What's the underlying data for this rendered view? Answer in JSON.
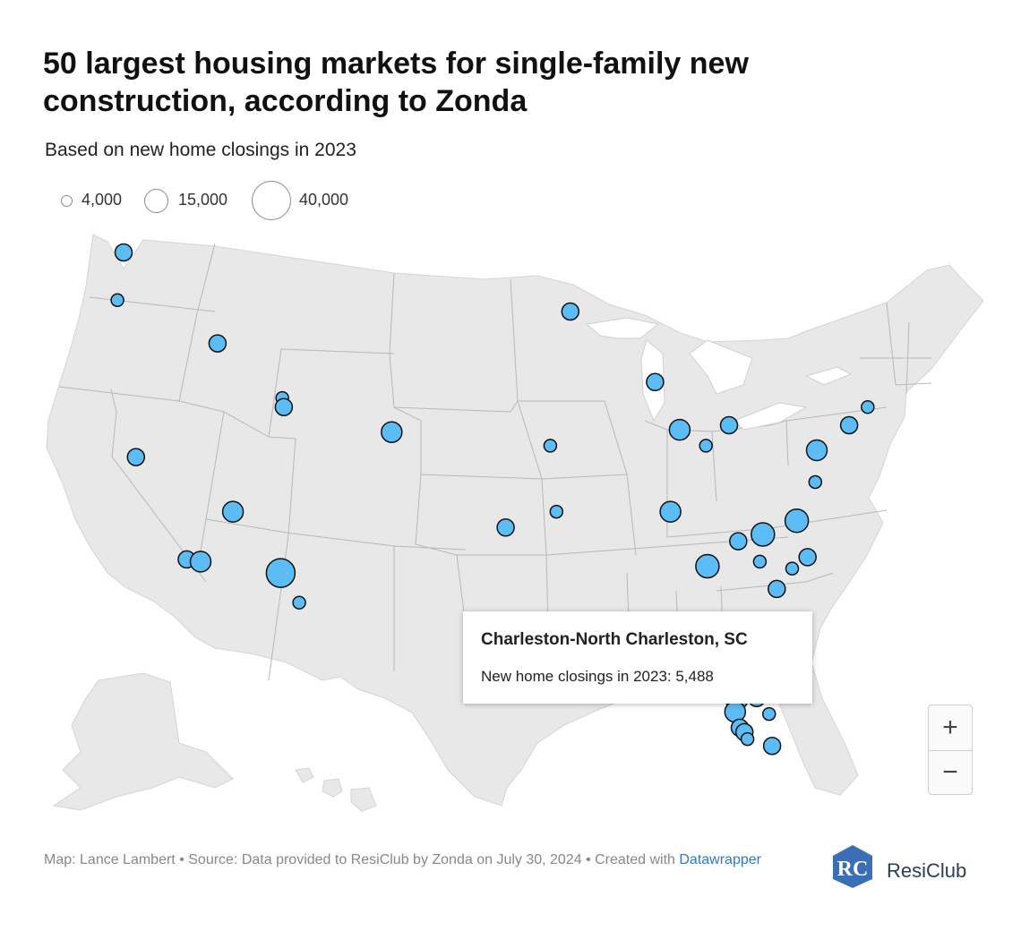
{
  "title": "50 largest housing markets for single-family new construction, according to Zonda",
  "subtitle": "Based on new home closings in 2023",
  "legend": [
    {
      "label": "4,000",
      "value": 4000
    },
    {
      "label": "15,000",
      "value": 15000
    },
    {
      "label": "40,000",
      "value": 40000
    }
  ],
  "tooltip": {
    "title": "Charleston-North Charleston, SC",
    "body_label": "New home closings in 2023: ",
    "body_value": "5,488"
  },
  "zoom": {
    "in_label": "+",
    "out_label": "−"
  },
  "footer": {
    "text": "Map: Lance Lambert • Source: Data provided to ResiClub by Zonda on July 30, 2024 • Created with ",
    "link": "Datawrapper"
  },
  "logo": {
    "mark": "RC",
    "text": "ResiClub"
  },
  "colors": {
    "marker_fill": "#5cbcf5",
    "marker_stroke": "#111111",
    "land": "#e8e8e8",
    "border": "#b8b8b8"
  },
  "markers": [
    {
      "lon": -122.3,
      "lat": 47.6,
      "size": "s"
    },
    {
      "lon": -122.7,
      "lat": 45.5,
      "size": "xs"
    },
    {
      "lon": -116.2,
      "lat": 43.6,
      "size": "s"
    },
    {
      "lon": -121.5,
      "lat": 38.6,
      "size": "s"
    },
    {
      "lon": -112.0,
      "lat": 41.2,
      "size": "xs"
    },
    {
      "lon": -111.9,
      "lat": 40.8,
      "size": "s"
    },
    {
      "lon": -104.9,
      "lat": 39.7,
      "size": "m"
    },
    {
      "lon": -115.2,
      "lat": 36.2,
      "size": "m"
    },
    {
      "lon": -118.2,
      "lat": 34.1,
      "size": "s"
    },
    {
      "lon": -117.3,
      "lat": 34.0,
      "size": "m"
    },
    {
      "lon": -112.1,
      "lat": 33.5,
      "size": "xl"
    },
    {
      "lon": -110.9,
      "lat": 32.2,
      "size": "xs"
    },
    {
      "lon": -93.3,
      "lat": 45.0,
      "size": "s"
    },
    {
      "lon": -94.6,
      "lat": 39.1,
      "size": "xs"
    },
    {
      "lon": -97.5,
      "lat": 35.5,
      "size": "s"
    },
    {
      "lon": -94.2,
      "lat": 36.2,
      "size": "xs"
    },
    {
      "lon": -87.8,
      "lat": 41.9,
      "size": "s"
    },
    {
      "lon": -86.2,
      "lat": 39.8,
      "size": "m"
    },
    {
      "lon": -83.0,
      "lat": 40.0,
      "size": "s"
    },
    {
      "lon": -84.5,
      "lat": 39.1,
      "size": "xs"
    },
    {
      "lon": -86.8,
      "lat": 36.2,
      "size": "m"
    },
    {
      "lon": -84.4,
      "lat": 33.8,
      "size": "l"
    },
    {
      "lon": -82.4,
      "lat": 34.9,
      "size": "s"
    },
    {
      "lon": -80.8,
      "lat": 35.2,
      "size": "l"
    },
    {
      "lon": -78.6,
      "lat": 35.8,
      "size": "l"
    },
    {
      "lon": -77.4,
      "lat": 37.5,
      "size": "xs"
    },
    {
      "lon": -77.3,
      "lat": 38.9,
      "size": "m"
    },
    {
      "lon": -75.2,
      "lat": 40.0,
      "size": "s"
    },
    {
      "lon": -74.0,
      "lat": 40.8,
      "size": "xs"
    },
    {
      "lon": -81.0,
      "lat": 34.0,
      "size": "xs"
    },
    {
      "lon": -79.9,
      "lat": 32.8,
      "size": "s"
    },
    {
      "lon": -77.9,
      "lat": 34.2,
      "size": "s"
    },
    {
      "lon": -78.9,
      "lat": 33.7,
      "size": "xs"
    },
    {
      "lon": -97.7,
      "lat": 30.3,
      "size": "l"
    },
    {
      "lon": -98.5,
      "lat": 29.4,
      "size": "l"
    },
    {
      "lon": -95.4,
      "lat": 29.8,
      "size": "xl"
    },
    {
      "lon": -81.7,
      "lat": 30.3,
      "size": "xs"
    },
    {
      "lon": -81.4,
      "lat": 28.5,
      "size": "l"
    },
    {
      "lon": -81.0,
      "lat": 29.2,
      "size": "s"
    },
    {
      "lon": -81.2,
      "lat": 28.0,
      "size": "s"
    },
    {
      "lon": -82.5,
      "lat": 28.0,
      "size": "l"
    },
    {
      "lon": -82.6,
      "lat": 27.4,
      "size": "m"
    },
    {
      "lon": -82.3,
      "lat": 26.7,
      "size": "s"
    },
    {
      "lon": -82.0,
      "lat": 26.5,
      "size": "s"
    },
    {
      "lon": -81.8,
      "lat": 26.2,
      "size": "xs"
    },
    {
      "lon": -80.4,
      "lat": 27.3,
      "size": "xs"
    },
    {
      "lon": -80.2,
      "lat": 25.9,
      "size": "s"
    },
    {
      "lon": -82.0,
      "lat": 28.9,
      "size": "s"
    },
    {
      "lon": -81.5,
      "lat": 30.9,
      "size": "xs"
    },
    {
      "lon": -80.6,
      "lat": 28.1,
      "size": "xs"
    }
  ]
}
